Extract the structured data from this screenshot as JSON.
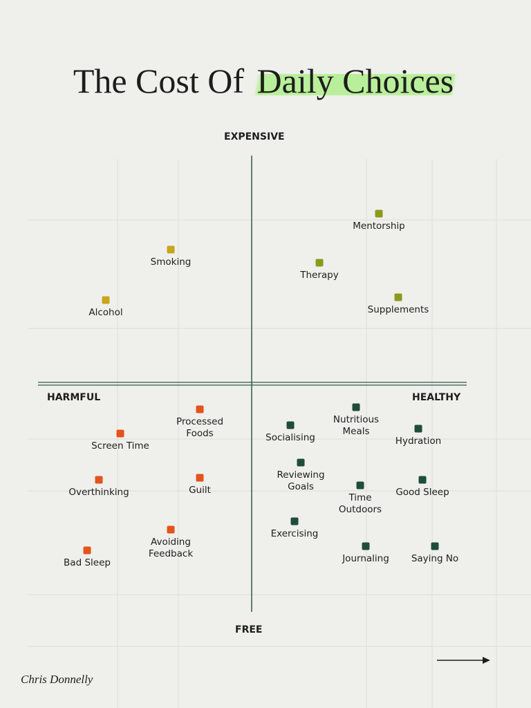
{
  "header": {
    "title_prefix": "The Cost Of",
    "title_highlight": "Daily Choices"
  },
  "axes": {
    "top": "EXPENSIVE",
    "bottom": "FREE",
    "left": "HARMFUL",
    "right": "HEALTHY"
  },
  "groups": [
    {
      "color": "#c9a51c",
      "items": [
        "Smoking",
        "Alcohol"
      ]
    },
    {
      "color": "#8c9a1c",
      "items": [
        "Mentorship",
        "Therapy",
        "Supplements"
      ]
    },
    {
      "color": "#e2541b",
      "items": [
        "Processed Foods",
        "Screen Time",
        "Overthinking",
        "Guilt",
        "Avoiding Feedback",
        "Bad Sleep"
      ]
    },
    {
      "color": "#1f4d3c",
      "items": [
        "Socialising",
        "Nutritious Meals",
        "Hydration",
        "Reviewing Goals",
        "Time Outdoors",
        "Good Sleep",
        "Exercising",
        "Journaling",
        "Saying No"
      ]
    }
  ],
  "footer": {
    "author": "Chris Donnelly"
  }
}
